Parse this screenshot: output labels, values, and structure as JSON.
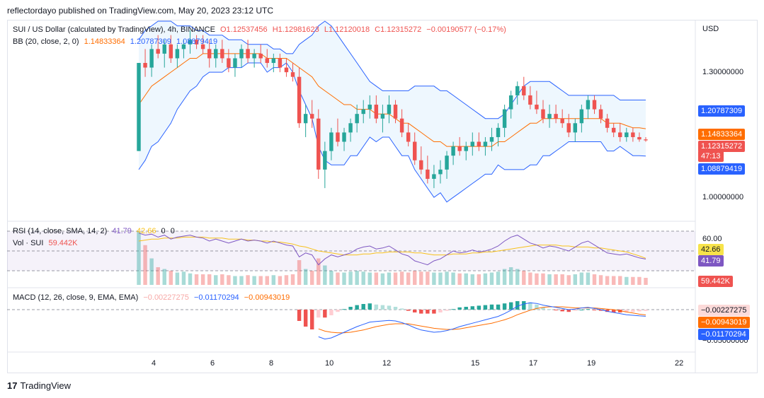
{
  "header": {
    "publisher_line": "reflectordayo published on TradingView.com, May 20, 2023 23:12 UTC"
  },
  "main_legend": {
    "symbol": "SUI / US Dollar (calculated by TradingView), 4h, BINANCE",
    "open": "O1.12537456",
    "high": "H1.12981623",
    "low": "L1.12120018",
    "close": "C1.12315272",
    "change": "−0.00190577 (−0.17%)",
    "bb_label": "BB (20, close, 2, 0)",
    "bb_mid": "1.14833364",
    "bb_upper": "1.20787309",
    "bb_lower": "1.08879419"
  },
  "rsi_legend": {
    "label": "RSI (14, close, SMA, 14, 2)",
    "rsi": "41.79",
    "ma": "42.66",
    "z1": "0",
    "z2": "0"
  },
  "vol_legend": {
    "label": "Vol · SUI",
    "value": "59.442K"
  },
  "macd_legend": {
    "label": "MACD (12, 26, close, 9, EMA, EMA)",
    "hist": "−0.00227275",
    "macd": "−0.01170294",
    "signal": "−0.00943019"
  },
  "price_axis": {
    "currency": "USD",
    "ticks": [
      "1.30000000",
      "1.00000000"
    ]
  },
  "rsi_axis": {
    "ticks": [
      "60.00"
    ]
  },
  "macd_axis": {
    "ticks": [
      "−0.05000000"
    ]
  },
  "tags": {
    "bb_upper": "1.20787309",
    "bb_mid": "1.14833364",
    "close": "1.12315272",
    "countdown": "47:13",
    "bb_lower": "1.08879419",
    "rsi_ma": "42.66",
    "rsi": "41.79",
    "vol": "59.442K",
    "macd_hist": "−0.00227275",
    "macd_signal": "−0.00943019",
    "macd_line": "−0.01170294"
  },
  "time_axis": [
    "4",
    "6",
    "8",
    "10",
    "12",
    "15",
    "17",
    "19",
    "22"
  ],
  "footer": {
    "brand": "TradingView"
  },
  "colors": {
    "up": "#26a69a",
    "down": "#ef5350",
    "bb_band": "#2962ff",
    "bb_mid": "#ff6d00",
    "rsi": "#7e57c2",
    "rsi_ma": "#f7c11b"
  },
  "chart_data": {
    "type": "candlestick",
    "price_ylim": [
      0.95,
      1.38
    ],
    "candles": [
      [
        1.1,
        1.29,
        1.1,
        1.29
      ],
      [
        1.29,
        1.32,
        1.26,
        1.28
      ],
      [
        1.28,
        1.33,
        1.26,
        1.32
      ],
      [
        1.32,
        1.35,
        1.3,
        1.31
      ],
      [
        1.31,
        1.34,
        1.28,
        1.33
      ],
      [
        1.33,
        1.35,
        1.29,
        1.3
      ],
      [
        1.3,
        1.33,
        1.28,
        1.32
      ],
      [
        1.32,
        1.34,
        1.3,
        1.33
      ],
      [
        1.33,
        1.36,
        1.31,
        1.34
      ],
      [
        1.34,
        1.35,
        1.32,
        1.33
      ],
      [
        1.33,
        1.35,
        1.31,
        1.32
      ],
      [
        1.32,
        1.34,
        1.28,
        1.3
      ],
      [
        1.3,
        1.33,
        1.28,
        1.32
      ],
      [
        1.32,
        1.34,
        1.29,
        1.3
      ],
      [
        1.3,
        1.32,
        1.27,
        1.28
      ],
      [
        1.28,
        1.31,
        1.26,
        1.3
      ],
      [
        1.3,
        1.33,
        1.28,
        1.32
      ],
      [
        1.32,
        1.34,
        1.29,
        1.3
      ],
      [
        1.3,
        1.32,
        1.28,
        1.31
      ],
      [
        1.31,
        1.33,
        1.29,
        1.3
      ],
      [
        1.3,
        1.32,
        1.28,
        1.29
      ],
      [
        1.29,
        1.31,
        1.27,
        1.3
      ],
      [
        1.3,
        1.31,
        1.27,
        1.28
      ],
      [
        1.28,
        1.3,
        1.26,
        1.27
      ],
      [
        1.27,
        1.29,
        1.25,
        1.26
      ],
      [
        1.26,
        1.28,
        1.15,
        1.16
      ],
      [
        1.16,
        1.2,
        1.13,
        1.18
      ],
      [
        1.18,
        1.21,
        1.15,
        1.17
      ],
      [
        1.17,
        1.19,
        1.04,
        1.06
      ],
      [
        1.06,
        1.12,
        1.02,
        1.1
      ],
      [
        1.1,
        1.15,
        1.08,
        1.14
      ],
      [
        1.14,
        1.17,
        1.11,
        1.12
      ],
      [
        1.12,
        1.15,
        1.1,
        1.14
      ],
      [
        1.14,
        1.17,
        1.12,
        1.16
      ],
      [
        1.16,
        1.2,
        1.14,
        1.18
      ],
      [
        1.18,
        1.21,
        1.16,
        1.19
      ],
      [
        1.19,
        1.22,
        1.17,
        1.2
      ],
      [
        1.2,
        1.22,
        1.16,
        1.17
      ],
      [
        1.17,
        1.2,
        1.14,
        1.18
      ],
      [
        1.18,
        1.22,
        1.16,
        1.2
      ],
      [
        1.2,
        1.21,
        1.16,
        1.17
      ],
      [
        1.17,
        1.19,
        1.13,
        1.14
      ],
      [
        1.14,
        1.16,
        1.11,
        1.12
      ],
      [
        1.12,
        1.14,
        1.07,
        1.08
      ],
      [
        1.08,
        1.11,
        1.05,
        1.06
      ],
      [
        1.06,
        1.09,
        1.03,
        1.04
      ],
      [
        1.04,
        1.07,
        1.02,
        1.05
      ],
      [
        1.05,
        1.08,
        1.03,
        1.06
      ],
      [
        1.06,
        1.1,
        1.04,
        1.09
      ],
      [
        1.09,
        1.12,
        1.07,
        1.11
      ],
      [
        1.11,
        1.13,
        1.09,
        1.1
      ],
      [
        1.1,
        1.12,
        1.08,
        1.11
      ],
      [
        1.11,
        1.14,
        1.09,
        1.12
      ],
      [
        1.12,
        1.14,
        1.1,
        1.11
      ],
      [
        1.11,
        1.13,
        1.09,
        1.12
      ],
      [
        1.12,
        1.15,
        1.1,
        1.13
      ],
      [
        1.13,
        1.16,
        1.11,
        1.15
      ],
      [
        1.15,
        1.2,
        1.13,
        1.19
      ],
      [
        1.19,
        1.23,
        1.17,
        1.22
      ],
      [
        1.22,
        1.25,
        1.2,
        1.24
      ],
      [
        1.24,
        1.26,
        1.21,
        1.22
      ],
      [
        1.22,
        1.24,
        1.19,
        1.2
      ],
      [
        1.2,
        1.23,
        1.18,
        1.19
      ],
      [
        1.19,
        1.21,
        1.16,
        1.17
      ],
      [
        1.17,
        1.2,
        1.15,
        1.18
      ],
      [
        1.18,
        1.2,
        1.16,
        1.17
      ],
      [
        1.17,
        1.19,
        1.15,
        1.16
      ],
      [
        1.16,
        1.18,
        1.13,
        1.14
      ],
      [
        1.14,
        1.17,
        1.12,
        1.16
      ],
      [
        1.16,
        1.2,
        1.14,
        1.19
      ],
      [
        1.19,
        1.22,
        1.17,
        1.21
      ],
      [
        1.21,
        1.22,
        1.18,
        1.19
      ],
      [
        1.19,
        1.2,
        1.16,
        1.17
      ],
      [
        1.17,
        1.18,
        1.14,
        1.15
      ],
      [
        1.15,
        1.16,
        1.13,
        1.14
      ],
      [
        1.14,
        1.16,
        1.12,
        1.13
      ],
      [
        1.13,
        1.15,
        1.12,
        1.14
      ],
      [
        1.14,
        1.15,
        1.12,
        1.13
      ],
      [
        1.13,
        1.14,
        1.12,
        1.125
      ],
      [
        1.125,
        1.13,
        1.12,
        1.123
      ]
    ],
    "bb_upper": [
      1.34,
      1.36,
      1.37,
      1.38,
      1.38,
      1.38,
      1.37,
      1.37,
      1.37,
      1.36,
      1.36,
      1.35,
      1.35,
      1.35,
      1.34,
      1.34,
      1.34,
      1.33,
      1.33,
      1.33,
      1.33,
      1.32,
      1.32,
      1.31,
      1.31,
      1.33,
      1.34,
      1.35,
      1.37,
      1.38,
      1.37,
      1.35,
      1.33,
      1.31,
      1.29,
      1.27,
      1.25,
      1.24,
      1.23,
      1.23,
      1.23,
      1.23,
      1.23,
      1.24,
      1.24,
      1.24,
      1.24,
      1.23,
      1.23,
      1.22,
      1.21,
      1.2,
      1.19,
      1.18,
      1.17,
      1.17,
      1.17,
      1.18,
      1.2,
      1.22,
      1.24,
      1.25,
      1.25,
      1.25,
      1.25,
      1.24,
      1.23,
      1.22,
      1.22,
      1.22,
      1.22,
      1.22,
      1.22,
      1.22,
      1.22,
      1.21,
      1.21,
      1.21,
      1.21,
      1.21
    ],
    "bb_mid": [
      1.2,
      1.22,
      1.24,
      1.25,
      1.26,
      1.27,
      1.28,
      1.29,
      1.3,
      1.3,
      1.31,
      1.31,
      1.31,
      1.31,
      1.31,
      1.31,
      1.31,
      1.31,
      1.31,
      1.31,
      1.3,
      1.3,
      1.3,
      1.3,
      1.29,
      1.28,
      1.27,
      1.26,
      1.24,
      1.23,
      1.22,
      1.21,
      1.2,
      1.2,
      1.19,
      1.19,
      1.19,
      1.18,
      1.18,
      1.18,
      1.17,
      1.16,
      1.16,
      1.15,
      1.14,
      1.13,
      1.12,
      1.12,
      1.11,
      1.11,
      1.11,
      1.11,
      1.11,
      1.11,
      1.11,
      1.11,
      1.12,
      1.12,
      1.13,
      1.14,
      1.15,
      1.16,
      1.16,
      1.17,
      1.17,
      1.17,
      1.17,
      1.17,
      1.17,
      1.17,
      1.17,
      1.17,
      1.17,
      1.16,
      1.16,
      1.16,
      1.155,
      1.15,
      1.15,
      1.148
    ],
    "bb_lower": [
      1.06,
      1.08,
      1.11,
      1.12,
      1.14,
      1.16,
      1.19,
      1.21,
      1.23,
      1.24,
      1.26,
      1.27,
      1.27,
      1.27,
      1.28,
      1.28,
      1.28,
      1.29,
      1.29,
      1.29,
      1.27,
      1.28,
      1.28,
      1.29,
      1.27,
      1.23,
      1.2,
      1.17,
      1.11,
      1.08,
      1.07,
      1.07,
      1.07,
      1.09,
      1.09,
      1.11,
      1.13,
      1.12,
      1.13,
      1.13,
      1.11,
      1.09,
      1.09,
      1.06,
      1.04,
      1.02,
      1.0,
      1.01,
      0.99,
      1.0,
      1.01,
      1.02,
      1.03,
      1.04,
      1.05,
      1.05,
      1.07,
      1.06,
      1.06,
      1.06,
      1.06,
      1.07,
      1.07,
      1.09,
      1.09,
      1.1,
      1.11,
      1.12,
      1.12,
      1.12,
      1.12,
      1.12,
      1.12,
      1.1,
      1.1,
      1.11,
      1.1,
      1.09,
      1.09,
      1.089
    ],
    "rsi": [
      68,
      66,
      67,
      64,
      66,
      62,
      64,
      65,
      66,
      64,
      63,
      60,
      62,
      60,
      58,
      60,
      62,
      60,
      61,
      60,
      58,
      60,
      58,
      56,
      55,
      44,
      48,
      46,
      36,
      42,
      46,
      44,
      46,
      48,
      52,
      54,
      55,
      52,
      53,
      55,
      51,
      47,
      45,
      40,
      38,
      36,
      40,
      42,
      46,
      50,
      48,
      49,
      51,
      49,
      50,
      52,
      55,
      60,
      64,
      66,
      62,
      58,
      56,
      53,
      55,
      54,
      52,
      50,
      54,
      58,
      60,
      56,
      52,
      48,
      47,
      46,
      47,
      45,
      43,
      41.79
    ],
    "rsi_ma": [
      60,
      61,
      62,
      62,
      63,
      63,
      63,
      64,
      64,
      64,
      64,
      63,
      63,
      63,
      62,
      62,
      62,
      61,
      61,
      60,
      60,
      59,
      59,
      58,
      57,
      55,
      54,
      52,
      50,
      49,
      48,
      47,
      46,
      46,
      46,
      47,
      47,
      48,
      48,
      49,
      49,
      49,
      49,
      48,
      48,
      47,
      46,
      46,
      46,
      47,
      47,
      47,
      48,
      48,
      49,
      49,
      50,
      51,
      52,
      53,
      54,
      55,
      56,
      56,
      56,
      56,
      55,
      55,
      54,
      54,
      54,
      53,
      53,
      52,
      51,
      50,
      49,
      47,
      45,
      42.66
    ],
    "volume": [
      60,
      45,
      30,
      20,
      18,
      16,
      14,
      15,
      13,
      12,
      12,
      12,
      11,
      12,
      11,
      10,
      10,
      11,
      10,
      10,
      10,
      11,
      10,
      11,
      12,
      28,
      18,
      16,
      30,
      22,
      16,
      14,
      14,
      15,
      16,
      15,
      14,
      14,
      13,
      14,
      14,
      15,
      14,
      16,
      15,
      15,
      14,
      14,
      15,
      14,
      13,
      13,
      12,
      12,
      13,
      14,
      15,
      18,
      20,
      18,
      16,
      14,
      13,
      13,
      12,
      12,
      12,
      11,
      12,
      14,
      14,
      12,
      11,
      10,
      10,
      10,
      9,
      9,
      9,
      8
    ],
    "macd_line": [
      0,
      0,
      0,
      0,
      0,
      0,
      0,
      0,
      0,
      0,
      0,
      0,
      0,
      0,
      0,
      0,
      0,
      0,
      0,
      0,
      0,
      0,
      0,
      0,
      0,
      -0.02,
      -0.03,
      -0.035,
      -0.048,
      -0.052,
      -0.05,
      -0.045,
      -0.04,
      -0.035,
      -0.03,
      -0.026,
      -0.022,
      -0.021,
      -0.02,
      -0.019,
      -0.02,
      -0.023,
      -0.027,
      -0.032,
      -0.036,
      -0.038,
      -0.04,
      -0.039,
      -0.037,
      -0.034,
      -0.03,
      -0.027,
      -0.024,
      -0.021,
      -0.018,
      -0.015,
      -0.012,
      -0.007,
      -0.001,
      0.006,
      0.01,
      0.012,
      0.011,
      0.008,
      0.006,
      0.004,
      0.002,
      0.0,
      0.001,
      0.003,
      0.004,
      0.002,
      0.0,
      -0.003,
      -0.005,
      -0.007,
      -0.009,
      -0.01,
      -0.011,
      -0.0117
    ],
    "macd_signal": [
      0,
      0,
      0,
      0,
      0,
      0,
      0,
      0,
      0,
      0,
      0,
      0,
      0,
      0,
      0,
      0,
      0,
      0,
      0,
      0,
      0,
      0,
      0,
      0,
      0,
      -0.0,
      -0.0,
      -0.0,
      -0.034,
      -0.038,
      -0.04,
      -0.041,
      -0.041,
      -0.04,
      -0.038,
      -0.036,
      -0.033,
      -0.03,
      -0.028,
      -0.026,
      -0.025,
      -0.025,
      -0.025,
      -0.027,
      -0.029,
      -0.031,
      -0.033,
      -0.034,
      -0.035,
      -0.035,
      -0.034,
      -0.032,
      -0.03,
      -0.028,
      -0.026,
      -0.024,
      -0.021,
      -0.018,
      -0.014,
      -0.009,
      -0.005,
      -0.001,
      0.002,
      0.004,
      0.005,
      0.005,
      0.005,
      0.004,
      0.003,
      0.003,
      0.003,
      0.003,
      0.002,
      0.001,
      0.0,
      -0.002,
      -0.004,
      -0.006,
      -0.008,
      -0.0094
    ]
  }
}
